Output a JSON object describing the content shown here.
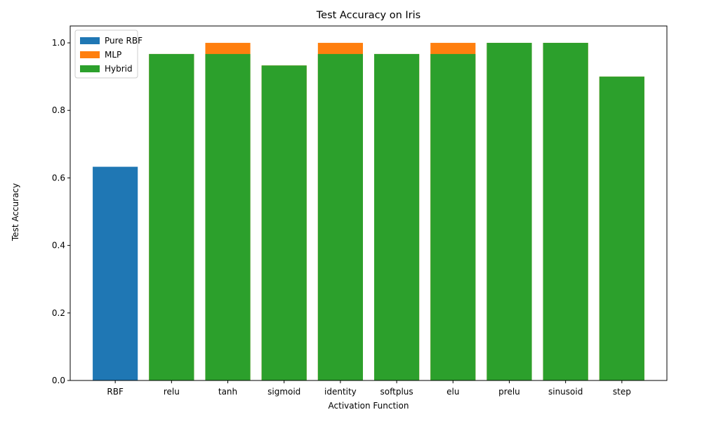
{
  "chart_data": {
    "type": "bar",
    "title": "Test Accuracy on Iris",
    "xlabel": "Activation Function",
    "ylabel": "Test Accuracy",
    "ylim": [
      0,
      1.05
    ],
    "yticks": [
      "0.0",
      "0.2",
      "0.4",
      "0.6",
      "0.8",
      "1.0"
    ],
    "grid": false,
    "legend_position": "top-left",
    "categories": [
      "RBF",
      "relu",
      "tanh",
      "sigmoid",
      "identity",
      "softplus",
      "elu",
      "prelu",
      "sinusoid",
      "step"
    ],
    "series": [
      {
        "name": "Pure RBF",
        "color": "#1f77b4",
        "values": [
          0.633,
          null,
          null,
          null,
          null,
          null,
          null,
          null,
          null,
          null
        ]
      },
      {
        "name": "MLP",
        "color": "#ff7f0e",
        "values": [
          null,
          0.967,
          1.0,
          0.933,
          1.0,
          0.967,
          1.0,
          1.0,
          1.0,
          0.9
        ]
      },
      {
        "name": "Hybrid",
        "color": "#2ca02c",
        "values": [
          null,
          0.967,
          0.967,
          0.933,
          0.967,
          0.967,
          0.967,
          1.0,
          1.0,
          0.9
        ]
      }
    ]
  }
}
